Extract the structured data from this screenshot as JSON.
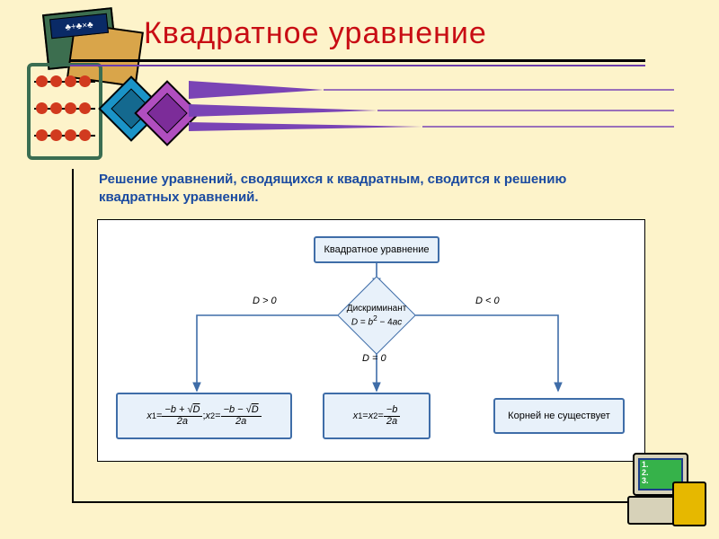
{
  "page": {
    "bg_color": "#fdf3ca",
    "title": "Квадратное уравнение",
    "title_color": "#c80d14",
    "underline_colors": [
      "#000000",
      "#6e3fad"
    ],
    "arrow_color": "#7a44b5",
    "intro_text": "Решение уравнений, сводящихся к квадратным, сводится к решению квадратных уравнений.",
    "intro_color": "#1a4aa0"
  },
  "decor": {
    "top_left": {
      "frame_colors": [
        "#3c6e4f",
        "#d9a54a"
      ],
      "icon_bg": "#0a2a66",
      "sign": "♣+♣×♣",
      "abacus_frame": "#3a6d52",
      "abacus_beads": "#d13a1f"
    },
    "squares": [
      {
        "fill": "#1a93c7",
        "inner": "#14698f"
      },
      {
        "fill": "#b04ebf",
        "inner": "#7c2c99"
      }
    ],
    "bottom_right": {
      "screen": "#36b24a",
      "frame": "#1d3d8a",
      "key": "#e6b800",
      "body": "#d7d2b9"
    }
  },
  "flow": {
    "panel_bg": "#ffffff",
    "node_border": "#3f6da8",
    "node_fill": "#e8f1fa",
    "arrow_color": "#3f6da8",
    "top": {
      "label": "Квадратное уравнение"
    },
    "diamond": {
      "line1": "Дискриминант",
      "formula": "D = b² − 4ac"
    },
    "edge_labels": {
      "left": "D > 0",
      "mid": "D = 0",
      "right": "D < 0"
    },
    "result_right": {
      "text": "Корней не существует"
    },
    "result_mid": {
      "prefix": "x",
      "sub1": "1",
      "eq": " = ",
      "sub2": "2",
      "num_parts": [
        "−",
        "b"
      ],
      "den_parts": [
        "2",
        "a"
      ]
    },
    "result_left": {
      "x1": {
        "prefix": "x",
        "sub": "1",
        "num": [
          "−",
          "b",
          " + √",
          "D"
        ],
        "den": [
          "2",
          "a"
        ]
      },
      "sep": " ; ",
      "x2": {
        "prefix": "x",
        "sub": "2",
        "num": [
          "−",
          "b",
          " − √",
          "D"
        ],
        "den": [
          "2",
          "a"
        ]
      }
    }
  }
}
